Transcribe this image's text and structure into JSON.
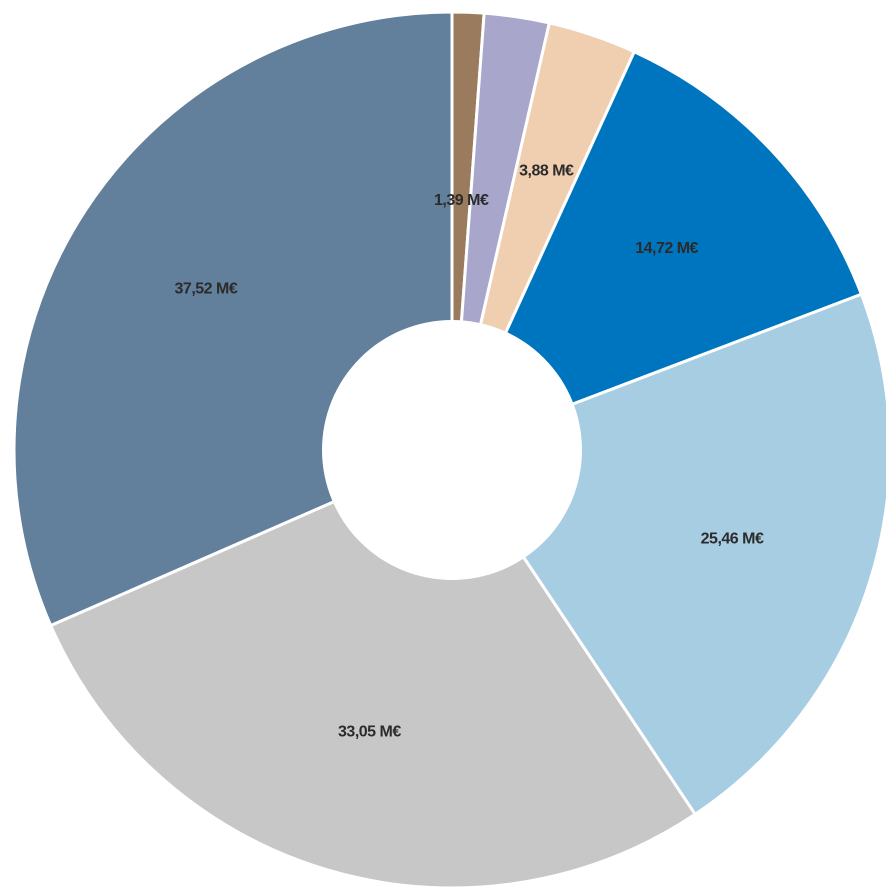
{
  "chart_data": {
    "type": "pie",
    "donut": true,
    "start_angle": "12 o'clock",
    "direction": "clockwise",
    "slices": [
      {
        "value": 1.39,
        "label": "1,39 M€",
        "color": "#9a7b5e",
        "show_label": true
      },
      {
        "value": 2.85,
        "label": "",
        "color": "#a9a6cc",
        "show_label": false
      },
      {
        "value": 3.88,
        "label": "3,88 M€",
        "color": "#f0cfb0",
        "show_label": true
      },
      {
        "value": 14.72,
        "label": "14,72 M€",
        "color": "#0075bf",
        "show_label": true
      },
      {
        "value": 25.46,
        "label": "25,46 M€",
        "color": "#a7cde3",
        "show_label": true
      },
      {
        "value": 33.05,
        "label": "33,05 M€",
        "color": "#c7c7c7",
        "show_label": true
      },
      {
        "value": 37.52,
        "label": "37,52 M€",
        "color": "#627f9c",
        "show_label": true
      }
    ]
  }
}
